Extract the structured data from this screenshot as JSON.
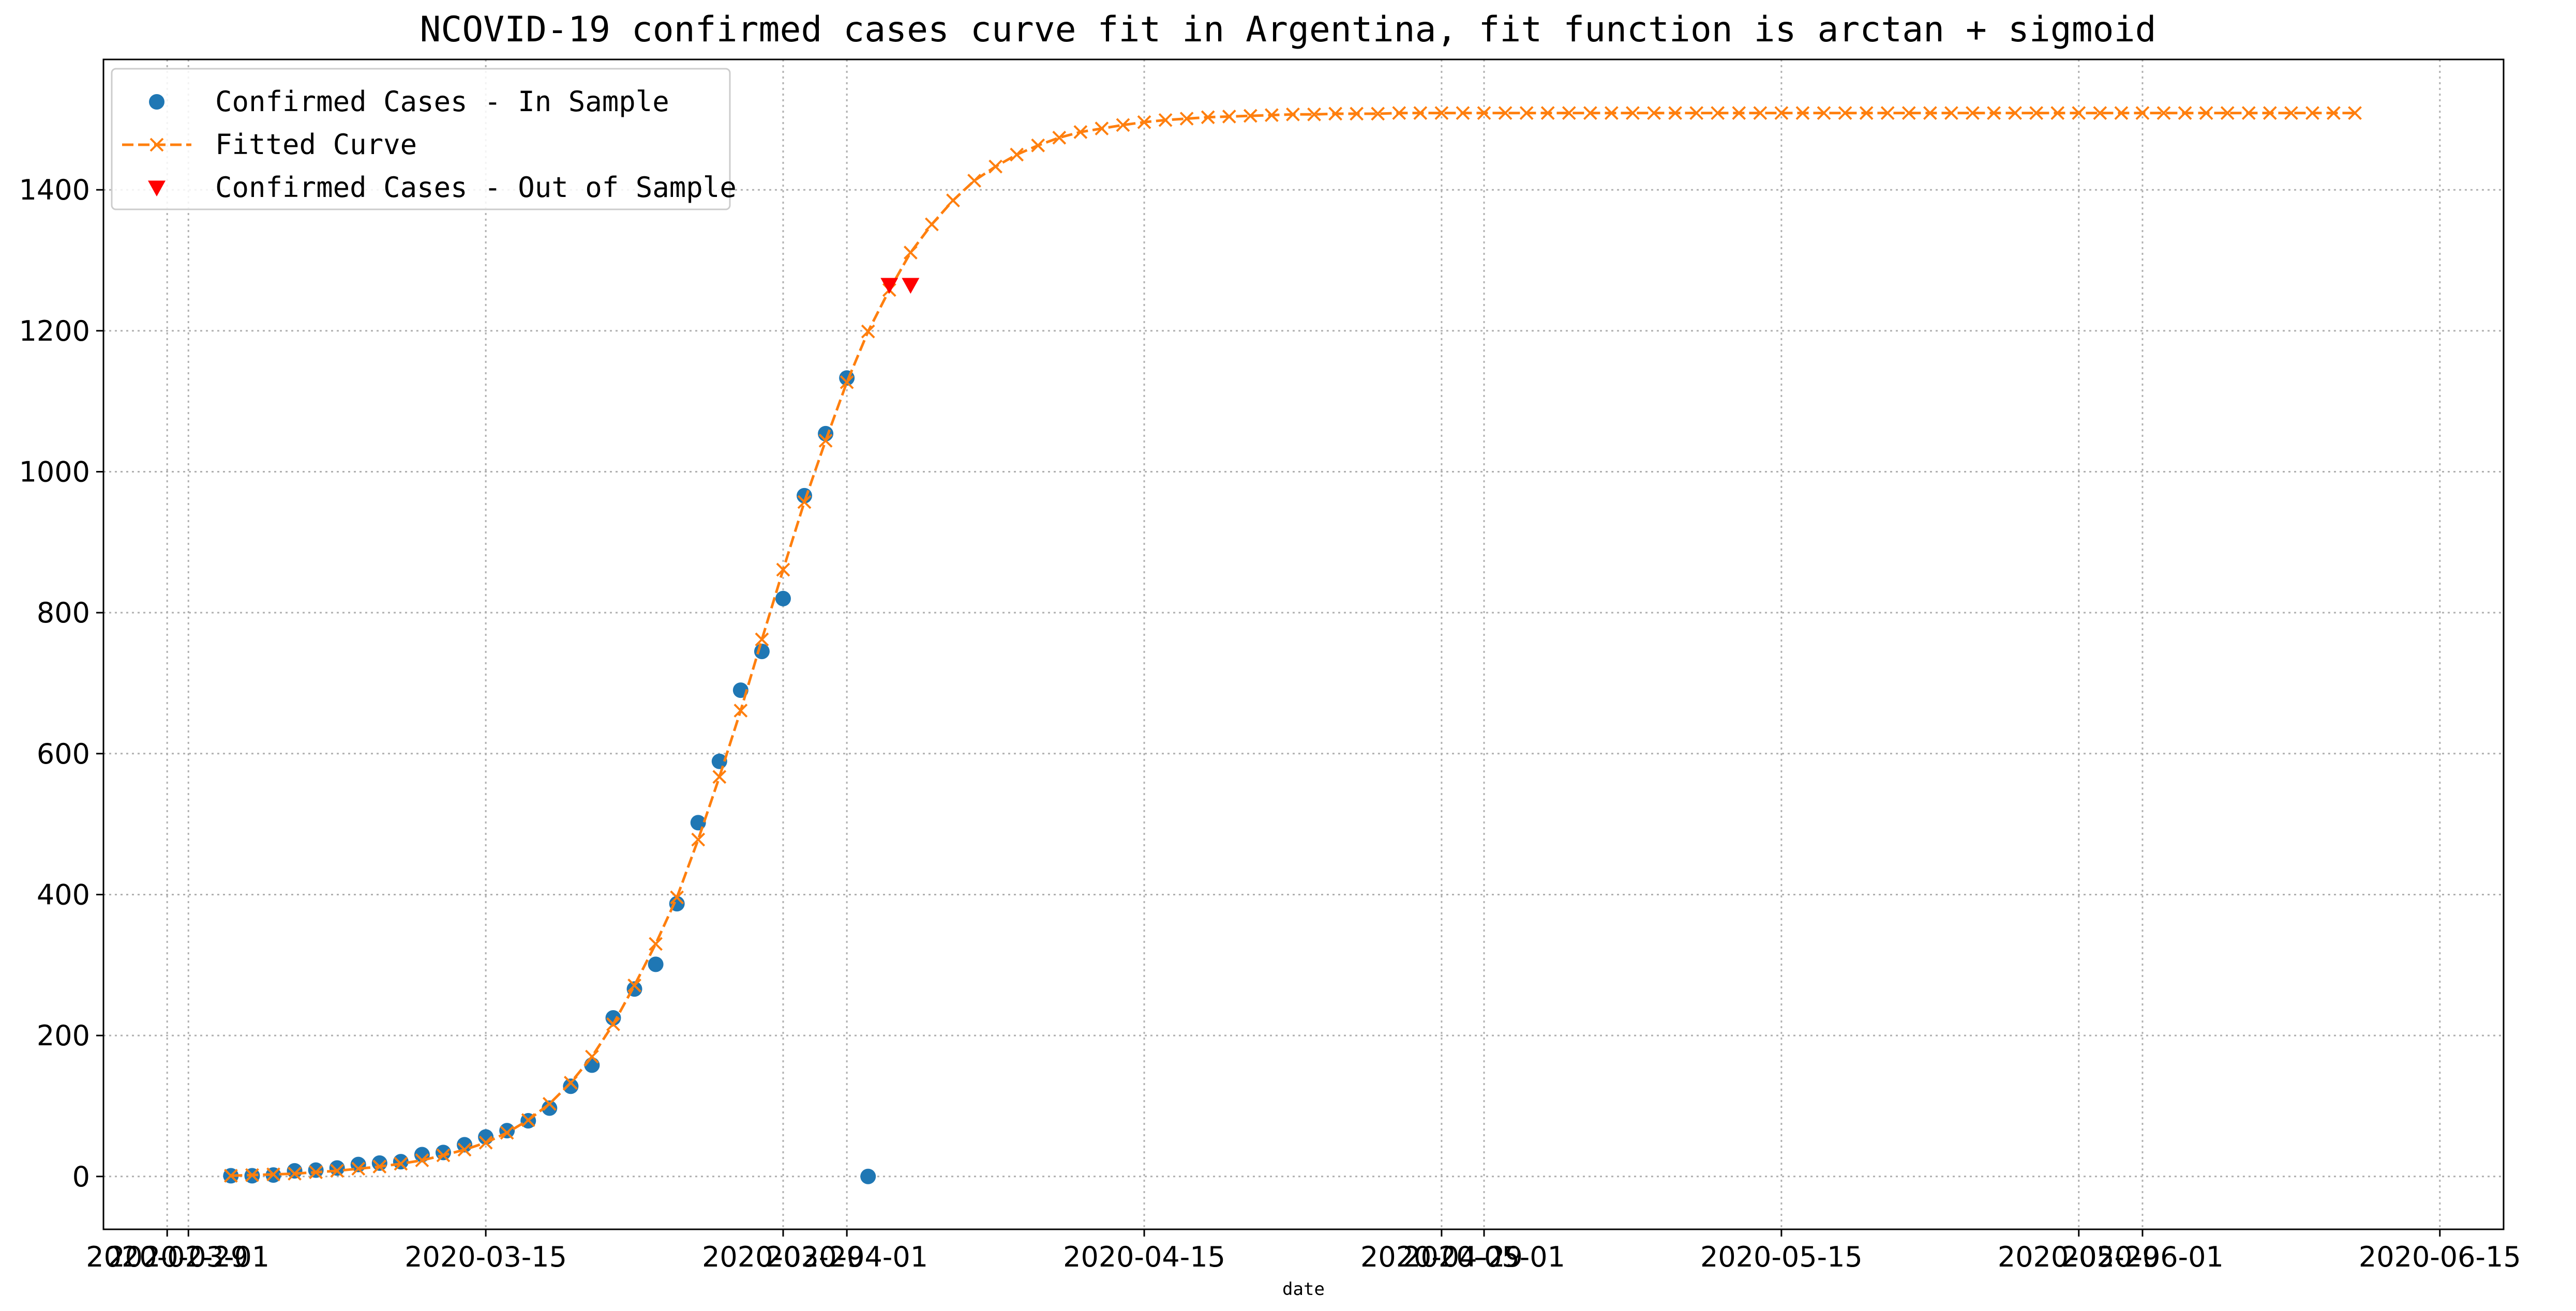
{
  "chart_data": {
    "type": "line",
    "title": "NCOVID-19 confirmed cases curve fit in Argentina, fit function is arctan + sigmoid",
    "xlabel": "date",
    "ylabel": "",
    "xlim": [
      "2020-02-26",
      "2020-06-18"
    ],
    "ylim": [
      -75,
      1585
    ],
    "x_ticks": [
      "2020-02-29",
      "2020-03-01",
      "2020-03-15",
      "2020-03-29",
      "2020-04-01",
      "2020-04-15",
      "2020-04-29",
      "2020-05-01",
      "2020-05-15",
      "2020-05-29",
      "2020-06-01",
      "2020-06-15"
    ],
    "y_ticks": [
      0,
      200,
      400,
      600,
      800,
      1000,
      1200,
      1400
    ],
    "grid": true,
    "legend_position": "top-left",
    "series": [
      {
        "name": "Confirmed Cases - In Sample",
        "kind": "scatter",
        "marker": "circle",
        "color": "#1f77b4",
        "x": [
          "2020-03-03",
          "2020-03-04",
          "2020-03-05",
          "2020-03-06",
          "2020-03-07",
          "2020-03-08",
          "2020-03-09",
          "2020-03-10",
          "2020-03-11",
          "2020-03-12",
          "2020-03-13",
          "2020-03-14",
          "2020-03-15",
          "2020-03-16",
          "2020-03-17",
          "2020-03-18",
          "2020-03-19",
          "2020-03-20",
          "2020-03-21",
          "2020-03-22",
          "2020-03-23",
          "2020-03-24",
          "2020-03-25",
          "2020-03-26",
          "2020-03-27",
          "2020-03-28",
          "2020-03-29",
          "2020-03-30",
          "2020-03-31",
          "2020-04-01",
          "2020-04-02"
        ],
        "y": [
          1,
          1,
          2,
          8,
          9,
          12,
          17,
          19,
          21,
          31,
          34,
          45,
          56,
          65,
          79,
          97,
          128,
          158,
          225,
          266,
          301,
          387,
          502,
          589,
          690,
          745,
          820,
          966,
          1054,
          1133,
          0
        ]
      },
      {
        "name": "Fitted Curve",
        "kind": "line",
        "marker": "x",
        "line_style": "dashed",
        "color": "#ff7f0e",
        "x_start": "2020-03-03",
        "x_end": "2020-06-11",
        "step_days": 1,
        "y": [
          1,
          2,
          3,
          4,
          6,
          8,
          11,
          14,
          18,
          23,
          30,
          38,
          48,
          62,
          80,
          103,
          133,
          170,
          216,
          271,
          330,
          396,
          478,
          567,
          661,
          762,
          861,
          957,
          1044,
          1127,
          1199,
          1258,
          1311,
          1351,
          1385,
          1413,
          1433,
          1450,
          1463,
          1474,
          1482,
          1487,
          1492,
          1496,
          1499,
          1501,
          1503,
          1504,
          1505,
          1506,
          1507,
          1507,
          1508,
          1508,
          1508,
          1509,
          1509,
          1509,
          1509,
          1509,
          1509,
          1509,
          1509,
          1509,
          1509,
          1509,
          1509,
          1509,
          1509,
          1509,
          1509,
          1509,
          1509,
          1509,
          1509,
          1509,
          1509,
          1509,
          1509,
          1509,
          1509,
          1509,
          1509,
          1509,
          1509,
          1509,
          1509,
          1509,
          1509,
          1509,
          1509,
          1509,
          1509,
          1509,
          1509,
          1509,
          1509,
          1509,
          1509,
          1509,
          1509
        ]
      },
      {
        "name": "Confirmed Cases - Out of Sample",
        "kind": "scatter",
        "marker": "triangle-down",
        "color": "#ff0000",
        "x": [
          "2020-04-03",
          "2020-04-04"
        ],
        "y": [
          1265,
          1265
        ]
      }
    ]
  }
}
